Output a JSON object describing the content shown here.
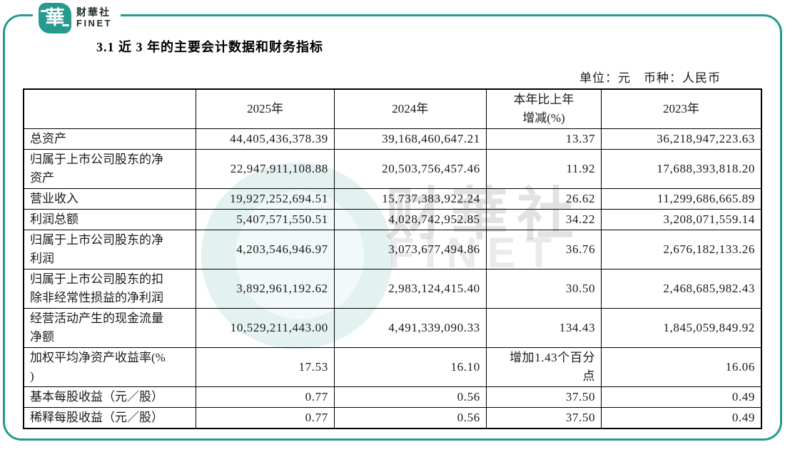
{
  "logo": {
    "mark": "華",
    "name_cn": "财華社",
    "name_en": "FINET"
  },
  "title": "3.1 近 3 年的主要会计数据和财务指标",
  "unit_line": "单位：元　币种：人民币",
  "table": {
    "headers": [
      "",
      "2025年",
      "2024年",
      "本年比上年\n增减(%)",
      "2023年"
    ],
    "rows": [
      [
        "总资产",
        "44,405,436,378.39",
        "39,168,460,647.21",
        "13.37",
        "36,218,947,223.63"
      ],
      [
        "归属于上市公司股东的净\n资产",
        "22,947,911,108.88",
        "20,503,756,457.46",
        "11.92",
        "17,688,393,818.20"
      ],
      [
        "营业收入",
        "19,927,252,694.51",
        "15,737,383,922.24",
        "26.62",
        "11,299,686,665.89"
      ],
      [
        "利润总额",
        "5,407,571,550.51",
        "4,028,742,952.85",
        "34.22",
        "3,208,071,559.14"
      ],
      [
        "归属于上市公司股东的净\n利润",
        "4,203,546,946.97",
        "3,073,677,494.86",
        "36.76",
        "2,676,182,133.26"
      ],
      [
        "归属于上市公司股东的扣\n除非经常性损益的净利润",
        "3,892,961,192.62",
        "2,983,124,415.40",
        "30.50",
        "2,468,685,982.43"
      ],
      [
        "经营活动产生的现金流量\n净额",
        "10,529,211,443.00",
        "4,491,339,090.33",
        "134.43",
        "1,845,059,849.92"
      ],
      [
        "加权平均净资产收益率(%\n)",
        "17.53",
        "16.10",
        "增加1.43个百分\n点",
        "16.06"
      ],
      [
        "基本每股收益（元／股）",
        "0.77",
        "0.56",
        "37.50",
        "0.49"
      ],
      [
        "稀释每股收益（元／股）",
        "0.77",
        "0.56",
        "37.50",
        "0.49"
      ]
    ]
  },
  "watermark": {
    "text_cn": "财華社",
    "text_en": "FINET"
  },
  "colors": {
    "accent": "#279a8f",
    "table_border": "#000000"
  }
}
